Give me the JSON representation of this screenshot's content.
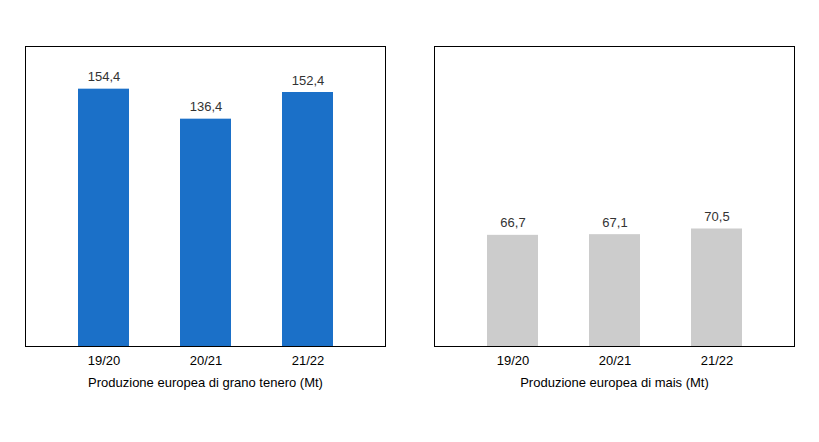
{
  "chart_data": [
    {
      "type": "bar",
      "categories": [
        "19/20",
        "20/21",
        "21/22"
      ],
      "values": [
        154.4,
        136.4,
        152.4
      ],
      "value_labels": [
        "154,4",
        "136,4",
        "152,4"
      ],
      "data_labels": true,
      "color": "#1B70C8",
      "xlabel": "Produzione europea di grano tenero (Mt)",
      "ylim": [
        0,
        180
      ],
      "tick_labels": "x",
      "grid": false
    },
    {
      "type": "bar",
      "categories": [
        "19/20",
        "20/21",
        "21/22"
      ],
      "values": [
        66.7,
        67.1,
        70.5
      ],
      "value_labels": [
        "66,7",
        "67,1",
        "70,5"
      ],
      "data_labels": true,
      "color": "#CCCCCC",
      "xlabel": "Produzione europea di mais (Mt)",
      "ylim": [
        0,
        180
      ],
      "tick_labels": "x",
      "grid": false
    }
  ]
}
